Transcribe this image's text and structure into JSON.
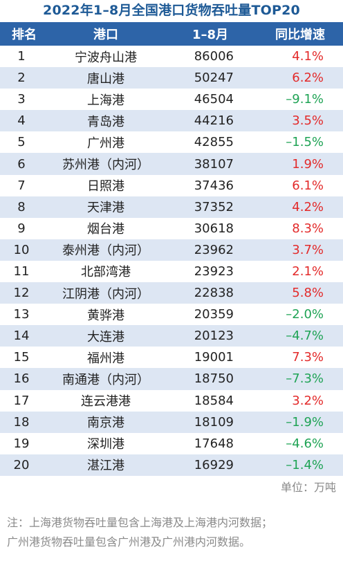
{
  "title": "2022年1–8月全国港口货物吞吐量TOP20",
  "headers": {
    "rank": "排名",
    "port": "港口",
    "value": "1–8月",
    "change": "同比增速"
  },
  "rows": [
    {
      "rank": "1",
      "port": "宁波舟山港",
      "value": "86006",
      "change": "4.1%",
      "trend": "pos"
    },
    {
      "rank": "2",
      "port": "唐山港",
      "value": "50247",
      "change": "6.2%",
      "trend": "pos"
    },
    {
      "rank": "3",
      "port": "上海港",
      "value": "46504",
      "change": "–9.1%",
      "trend": "neg"
    },
    {
      "rank": "4",
      "port": "青岛港",
      "value": "44216",
      "change": "3.5%",
      "trend": "pos"
    },
    {
      "rank": "5",
      "port": "广州港",
      "value": "42855",
      "change": "–1.5%",
      "trend": "neg"
    },
    {
      "rank": "6",
      "port": "苏州港（内河）",
      "value": "38107",
      "change": "1.9%",
      "trend": "pos"
    },
    {
      "rank": "7",
      "port": "日照港",
      "value": "37436",
      "change": "6.1%",
      "trend": "pos"
    },
    {
      "rank": "8",
      "port": "天津港",
      "value": "37352",
      "change": "4.2%",
      "trend": "pos"
    },
    {
      "rank": "9",
      "port": "烟台港",
      "value": "30618",
      "change": "8.3%",
      "trend": "pos"
    },
    {
      "rank": "10",
      "port": "泰州港（内河）",
      "value": "23962",
      "change": "3.7%",
      "trend": "pos"
    },
    {
      "rank": "11",
      "port": "北部湾港",
      "value": "23923",
      "change": "2.1%",
      "trend": "pos"
    },
    {
      "rank": "12",
      "port": "江阴港（内河）",
      "value": "22838",
      "change": "5.8%",
      "trend": "pos"
    },
    {
      "rank": "13",
      "port": "黄骅港",
      "value": "20359",
      "change": "–2.0%",
      "trend": "neg"
    },
    {
      "rank": "14",
      "port": "大连港",
      "value": "20123",
      "change": "–4.7%",
      "trend": "neg"
    },
    {
      "rank": "15",
      "port": "福州港",
      "value": "19001",
      "change": "7.3%",
      "trend": "pos"
    },
    {
      "rank": "16",
      "port": "南通港（内河）",
      "value": "18750",
      "change": "–7.3%",
      "trend": "neg"
    },
    {
      "rank": "17",
      "port": "连云港港",
      "value": "18584",
      "change": "3.2%",
      "trend": "pos"
    },
    {
      "rank": "18",
      "port": "南京港",
      "value": "18109",
      "change": "–1.9%",
      "trend": "neg"
    },
    {
      "rank": "19",
      "port": "深圳港",
      "value": "17648",
      "change": "–4.6%",
      "trend": "neg"
    },
    {
      "rank": "20",
      "port": "湛江港",
      "value": "16929",
      "change": "–1.4%",
      "trend": "neg"
    }
  ],
  "unit": "单位：万吨",
  "note_lines": [
    "注：上海港货物吞吐量包含上海港及上海港内河数据；",
    "广州港货物吞吐量包含广州港及广州港内河数据。"
  ],
  "colors": {
    "title": "#1e5a96",
    "header_bg": "#2d64a8",
    "stripe": "#dde6f3",
    "positive": "#e32a2a",
    "negative": "#1fa355"
  }
}
